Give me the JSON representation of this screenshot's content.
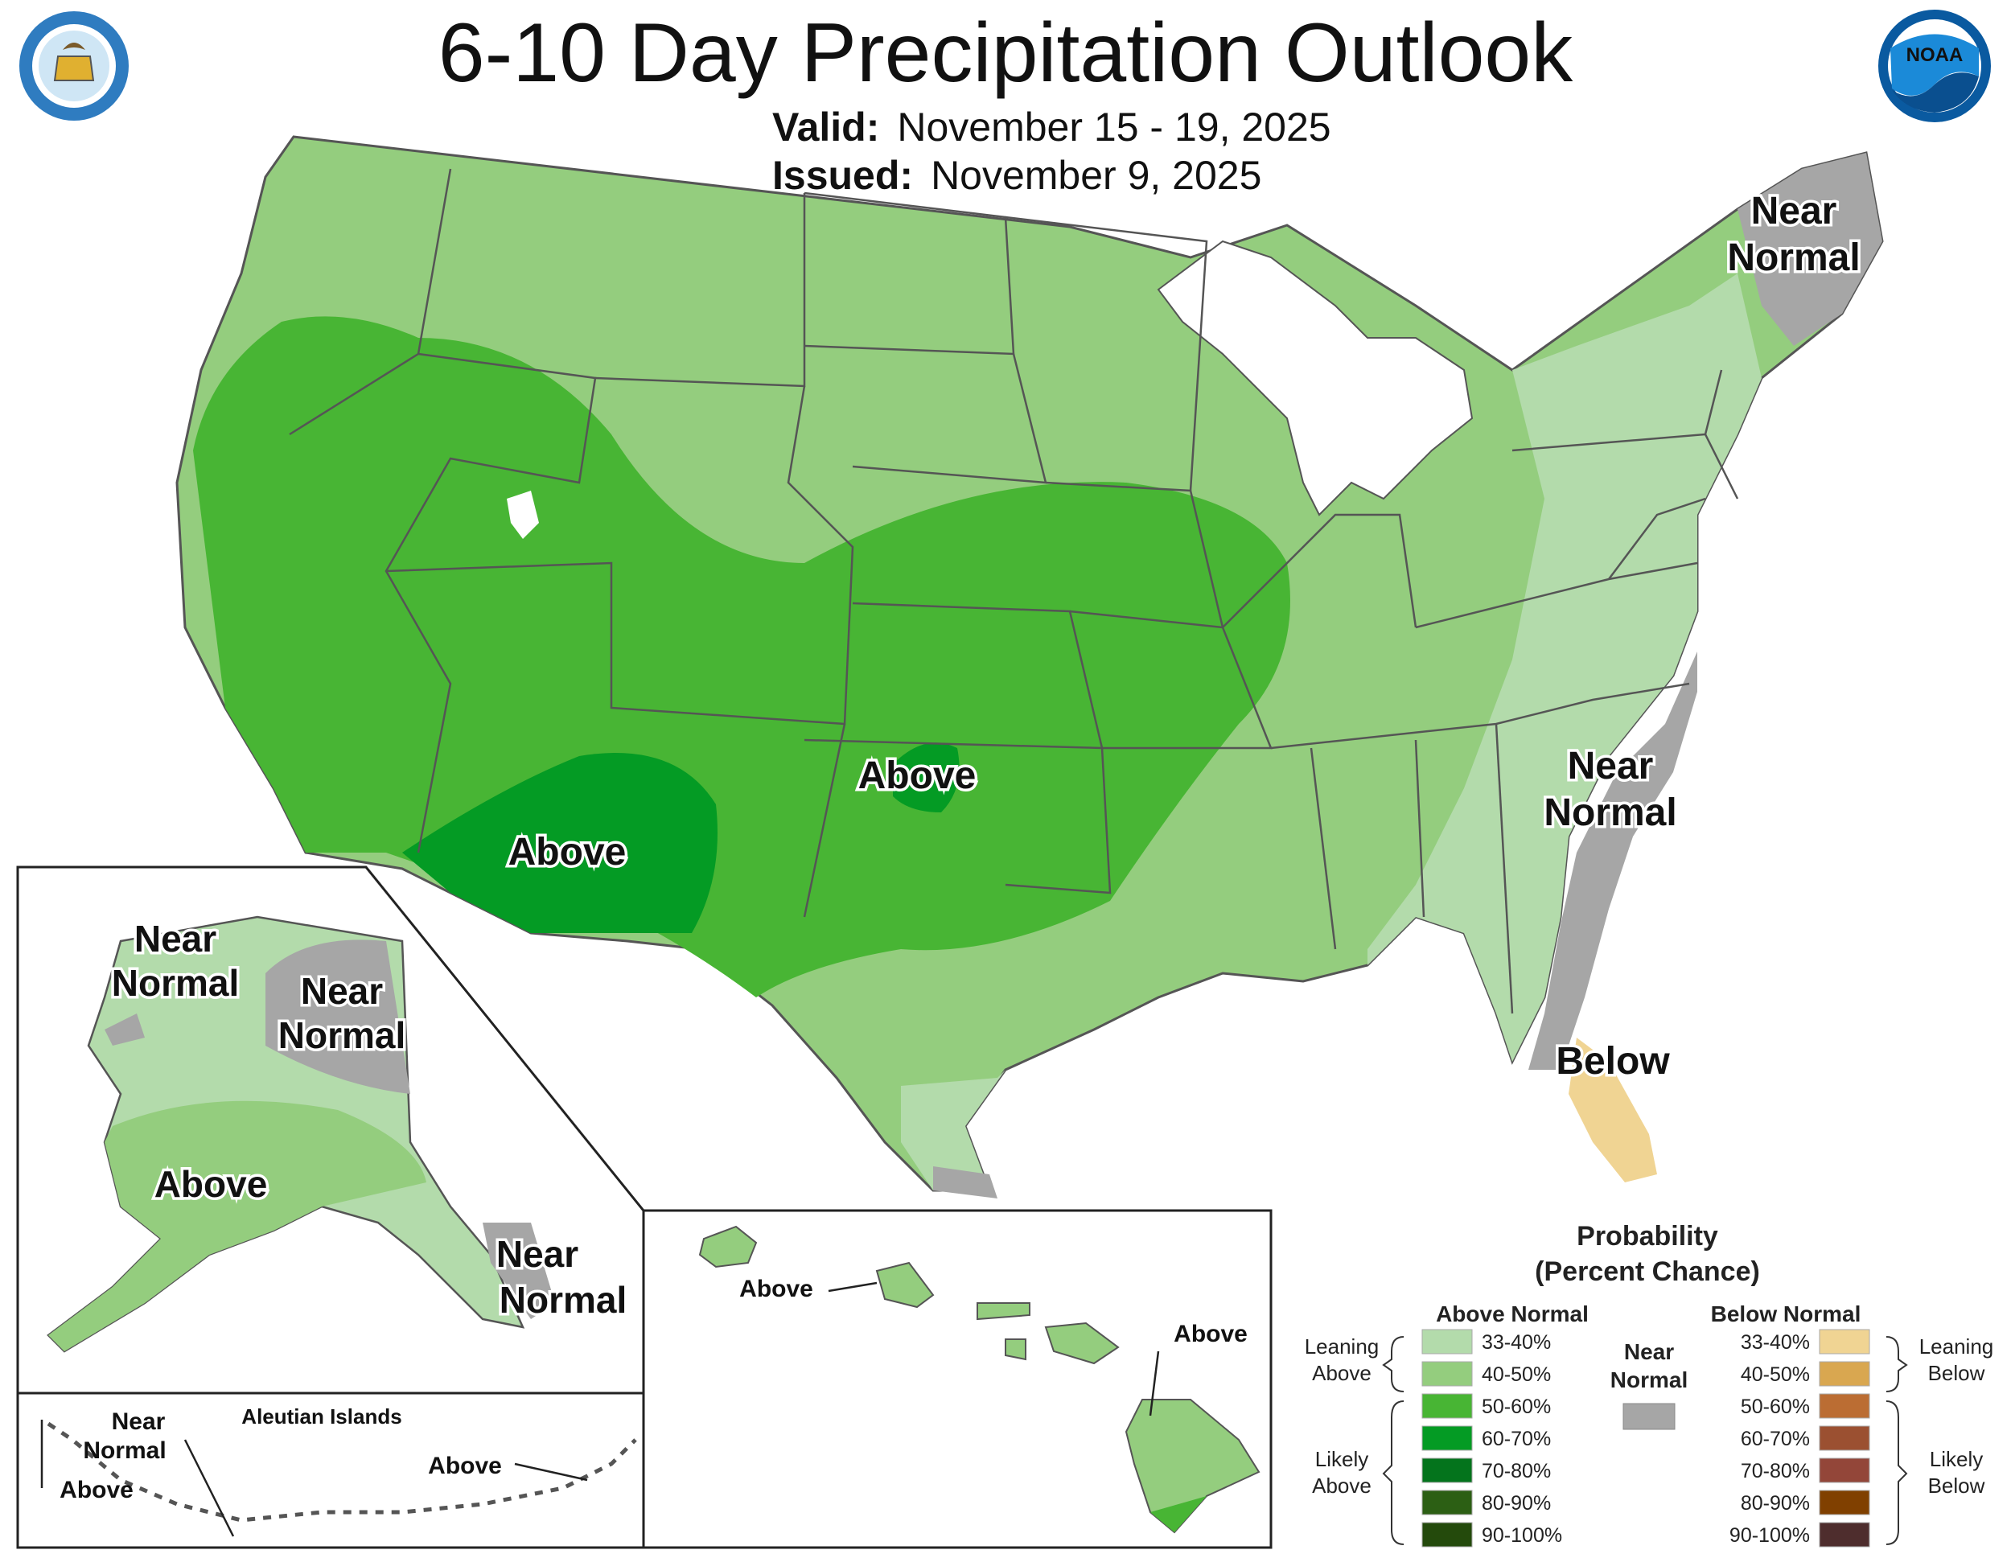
{
  "header": {
    "title": "6-10 Day Precipitation Outlook",
    "valid_label": "Valid:",
    "valid_value": "November 15 - 19, 2025",
    "issued_label": "Issued:",
    "issued_value": "November 9, 2025"
  },
  "logos": {
    "left": "department-of-commerce-seal",
    "right": "noaa-logo",
    "noaa_text": "NOAA"
  },
  "map_labels": {
    "maine": [
      "Near",
      "Normal"
    ],
    "carolinas": [
      "Near",
      "Normal"
    ],
    "florida": "Below",
    "oklahoma": "Above",
    "arizona": "Above",
    "alaska_west": [
      "Near",
      "Normal"
    ],
    "alaska_north": [
      "Near",
      "Normal"
    ],
    "alaska_main": "Above",
    "alaska_panhandle": [
      "Near",
      "Normal"
    ],
    "aleutian_title": "Aleutian Islands",
    "aleutian_near": [
      "Near",
      "Normal"
    ],
    "aleutian_above_west": "Above",
    "aleutian_above_east": "Above",
    "hawaii_west": "Above",
    "hawaii_east": "Above"
  },
  "legend": {
    "title": [
      "Probability",
      "(Percent Chance)"
    ],
    "above_header": "Above Normal",
    "below_header": "Below Normal",
    "near_label": [
      "Near",
      "Normal"
    ],
    "near_color": "#a6a6a6",
    "leaning_above": [
      "Leaning",
      "Above"
    ],
    "likely_above": [
      "Likely",
      "Above"
    ],
    "leaning_below": [
      "Leaning",
      "Below"
    ],
    "likely_below": [
      "Likely",
      "Below"
    ],
    "above_rows": [
      {
        "label": "33-40%",
        "color": "#b3dbab"
      },
      {
        "label": "40-50%",
        "color": "#94cd7e"
      },
      {
        "label": "50-60%",
        "color": "#48b534"
      },
      {
        "label": "60-70%",
        "color": "#049b24"
      },
      {
        "label": "70-80%",
        "color": "#04741c"
      },
      {
        "label": "80-90%",
        "color": "#2c5f14"
      },
      {
        "label": "90-100%",
        "color": "#244a0c"
      }
    ],
    "below_rows": [
      {
        "label": "33-40%",
        "color": "#f0d493"
      },
      {
        "label": "40-50%",
        "color": "#d9a750"
      },
      {
        "label": "50-60%",
        "color": "#bb6d33"
      },
      {
        "label": "60-70%",
        "color": "#9b5031"
      },
      {
        "label": "70-80%",
        "color": "#934639"
      },
      {
        "label": "80-90%",
        "color": "#804000"
      },
      {
        "label": "90-100%",
        "color": "#4e2d2d"
      }
    ]
  }
}
